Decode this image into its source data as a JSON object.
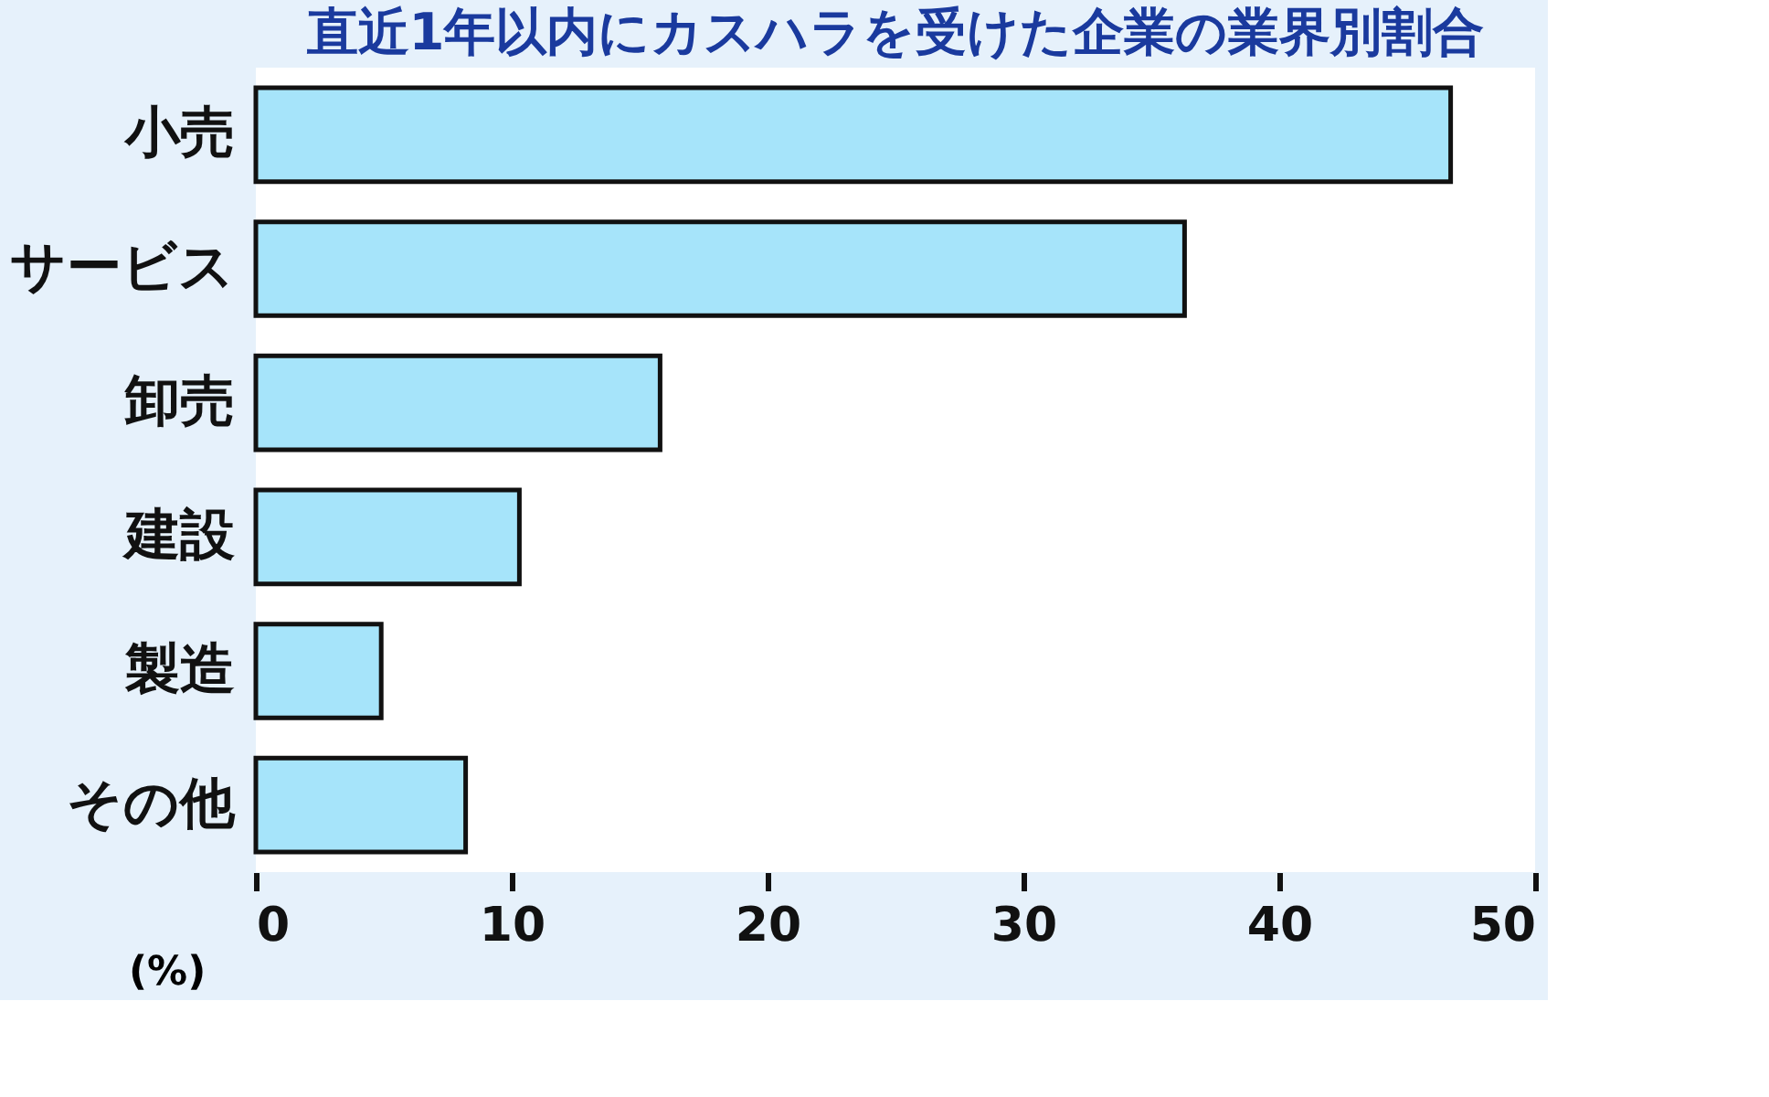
{
  "chart_data": {
    "type": "bar",
    "orientation": "horizontal",
    "title": "直近1年以内にカスハラを受けた企業の業界別割合",
    "xlabel": "(%)",
    "categories": [
      "小売",
      "サービス",
      "卸売",
      "建設",
      "製造",
      "その他"
    ],
    "values": [
      46.7,
      36.3,
      15.8,
      10.3,
      4.9,
      8.2
    ],
    "color": "#a6e4fa",
    "xlim": [
      0,
      50
    ],
    "xticks": [
      0,
      10,
      20,
      30,
      40,
      50
    ],
    "grid": false
  }
}
